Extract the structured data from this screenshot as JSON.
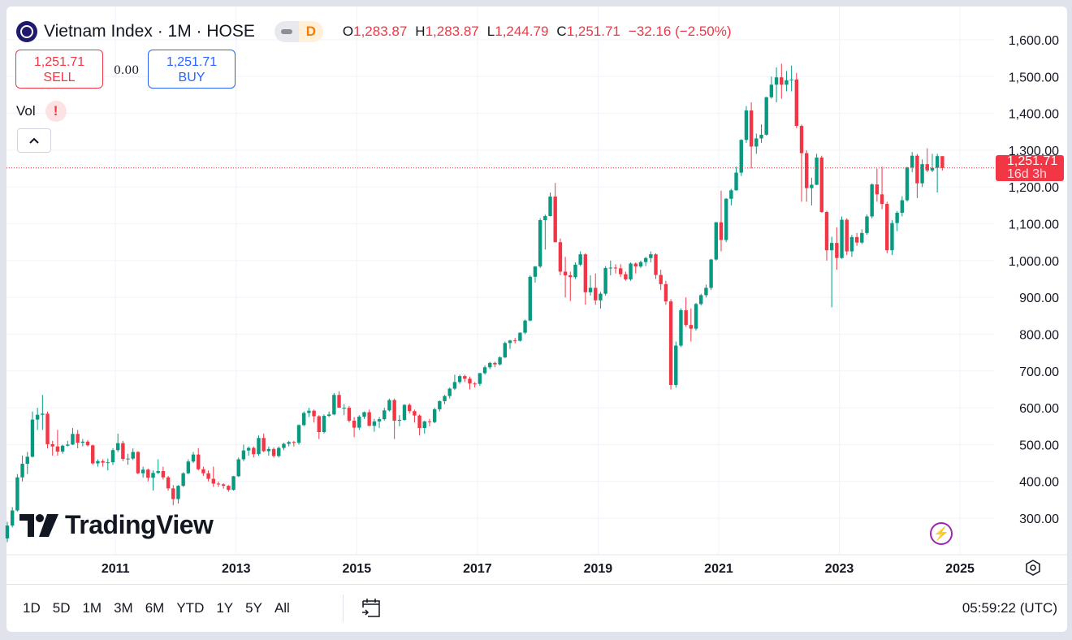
{
  "header": {
    "symbol_title": "Vietnam Index · 1M · HOSE",
    "data_status": "D",
    "ohlc": [
      {
        "key": "O",
        "value": "1,283.87"
      },
      {
        "key": "H",
        "value": "1,283.87"
      },
      {
        "key": "L",
        "value": "1,244.79"
      },
      {
        "key": "C",
        "value": "1,251.71"
      }
    ],
    "change": "−32.16 (−2.50%)"
  },
  "trade": {
    "sell_price": "1,251.71",
    "sell_label": "SELL",
    "spread": "0.00",
    "buy_price": "1,251.71",
    "buy_label": "BUY"
  },
  "indicator": {
    "name": "Vol",
    "warning": "!"
  },
  "collapse_icon": "chevron-up-icon",
  "logo_text": "TradingView",
  "price_tag": {
    "price": "1,251.71",
    "countdown": "16d 3h"
  },
  "toolbar": {
    "ranges": [
      "1D",
      "5D",
      "1M",
      "3M",
      "6M",
      "YTD",
      "1Y",
      "5Y",
      "All"
    ],
    "clock": "05:59:22 (UTC)"
  },
  "colors": {
    "up": "#089981",
    "down": "#f23645",
    "grid": "#f0f3fa",
    "last_price": "#f23645"
  },
  "chart_data": {
    "type": "candlestick",
    "interval": "1M",
    "y_tick_labels": [
      "1,600.00",
      "1,500.00",
      "1,400.00",
      "1,300.00",
      "1,200.00",
      "1,100.00",
      "1,000.00",
      "900.00",
      "800.00",
      "700.00",
      "600.00",
      "500.00",
      "400.00",
      "300.00"
    ],
    "y_ticks": [
      1600,
      1500,
      1400,
      1300,
      1200,
      1100,
      1000,
      900,
      800,
      700,
      600,
      500,
      400,
      300
    ],
    "x_tick_labels": [
      "2011",
      "2013",
      "2015",
      "2017",
      "2019",
      "2021",
      "2023",
      "2025"
    ],
    "grid": true,
    "last_price": 1251.71,
    "columns": [
      "date",
      "open",
      "high",
      "low",
      "close"
    ],
    "candles": [
      [
        "2009-03",
        245,
        290,
        235,
        280
      ],
      [
        "2009-04",
        280,
        330,
        275,
        321
      ],
      [
        "2009-05",
        321,
        420,
        318,
        411
      ],
      [
        "2009-06",
        411,
        470,
        400,
        448
      ],
      [
        "2009-07",
        448,
        480,
        420,
        467
      ],
      [
        "2009-08",
        467,
        590,
        465,
        568
      ],
      [
        "2009-09",
        568,
        600,
        540,
        581
      ],
      [
        "2009-10",
        581,
        635,
        540,
        584
      ],
      [
        "2009-11",
        584,
        590,
        490,
        501
      ],
      [
        "2009-12",
        501,
        510,
        470,
        495
      ],
      [
        "2010-01",
        495,
        540,
        470,
        481
      ],
      [
        "2010-02",
        481,
        500,
        475,
        497
      ],
      [
        "2010-03",
        497,
        510,
        495,
        500
      ],
      [
        "2010-04",
        500,
        545,
        499,
        529
      ],
      [
        "2010-05",
        529,
        540,
        490,
        505
      ],
      [
        "2010-06",
        505,
        515,
        495,
        508
      ],
      [
        "2010-07",
        508,
        512,
        495,
        498
      ],
      [
        "2010-08",
        498,
        500,
        445,
        449
      ],
      [
        "2010-09",
        449,
        460,
        440,
        455
      ],
      [
        "2010-10",
        455,
        460,
        440,
        451
      ],
      [
        "2010-11",
        451,
        462,
        430,
        452
      ],
      [
        "2010-12",
        452,
        490,
        445,
        485
      ],
      [
        "2011-01",
        485,
        530,
        480,
        504
      ],
      [
        "2011-02",
        504,
        510,
        455,
        461
      ],
      [
        "2011-03",
        461,
        475,
        445,
        462
      ],
      [
        "2011-04",
        462,
        490,
        458,
        480
      ],
      [
        "2011-05",
        480,
        482,
        420,
        422
      ],
      [
        "2011-06",
        422,
        440,
        410,
        432
      ],
      [
        "2011-07",
        432,
        435,
        400,
        410
      ],
      [
        "2011-08",
        410,
        430,
        375,
        423
      ],
      [
        "2011-09",
        423,
        460,
        420,
        428
      ],
      [
        "2011-10",
        428,
        440,
        405,
        411
      ],
      [
        "2011-11",
        411,
        415,
        375,
        381
      ],
      [
        "2011-12",
        381,
        390,
        335,
        352
      ],
      [
        "2012-01",
        352,
        390,
        340,
        388
      ],
      [
        "2012-02",
        388,
        425,
        385,
        422
      ],
      [
        "2012-03",
        422,
        460,
        420,
        454
      ],
      [
        "2012-04",
        454,
        480,
        450,
        473
      ],
      [
        "2012-05",
        473,
        490,
        430,
        433
      ],
      [
        "2012-06",
        433,
        440,
        415,
        422
      ],
      [
        "2012-07",
        422,
        430,
        400,
        407
      ],
      [
        "2012-08",
        407,
        440,
        385,
        394
      ],
      [
        "2012-09",
        394,
        400,
        385,
        392
      ],
      [
        "2012-10",
        392,
        395,
        380,
        388
      ],
      [
        "2012-11",
        388,
        390,
        372,
        377
      ],
      [
        "2012-12",
        377,
        415,
        375,
        414
      ],
      [
        "2013-01",
        414,
        465,
        412,
        460
      ],
      [
        "2013-02",
        460,
        500,
        455,
        484
      ],
      [
        "2013-03",
        484,
        495,
        470,
        491
      ],
      [
        "2013-04",
        491,
        495,
        465,
        474
      ],
      [
        "2013-05",
        474,
        525,
        470,
        518
      ],
      [
        "2013-06",
        518,
        530,
        480,
        482
      ],
      [
        "2013-07",
        482,
        495,
        470,
        488
      ],
      [
        "2013-08",
        488,
        492,
        465,
        469
      ],
      [
        "2013-09",
        469,
        495,
        465,
        491
      ],
      [
        "2013-10",
        491,
        505,
        485,
        502
      ],
      [
        "2013-11",
        502,
        510,
        495,
        507
      ],
      [
        "2013-12",
        507,
        510,
        495,
        505
      ],
      [
        "2014-01",
        505,
        555,
        500,
        553
      ],
      [
        "2014-02",
        553,
        590,
        550,
        586
      ],
      [
        "2014-03",
        586,
        600,
        575,
        592
      ],
      [
        "2014-04",
        592,
        595,
        560,
        577
      ],
      [
        "2014-05",
        577,
        580,
        515,
        534
      ],
      [
        "2014-06",
        534,
        582,
        530,
        578
      ],
      [
        "2014-07",
        578,
        590,
        575,
        582
      ],
      [
        "2014-08",
        582,
        640,
        580,
        635
      ],
      [
        "2014-09",
        635,
        645,
        600,
        600
      ],
      [
        "2014-10",
        600,
        610,
        580,
        600
      ],
      [
        "2014-11",
        600,
        605,
        560,
        565
      ],
      [
        "2014-12",
        565,
        575,
        520,
        546
      ],
      [
        "2015-01",
        546,
        580,
        540,
        576
      ],
      [
        "2015-02",
        576,
        590,
        570,
        588
      ],
      [
        "2015-03",
        588,
        595,
        550,
        551
      ],
      [
        "2015-04",
        551,
        570,
        535,
        563
      ],
      [
        "2015-05",
        563,
        575,
        545,
        569
      ],
      [
        "2015-06",
        569,
        600,
        565,
        593
      ],
      [
        "2015-07",
        593,
        625,
        590,
        621
      ],
      [
        "2015-08",
        621,
        625,
        515,
        565
      ],
      [
        "2015-09",
        565,
        580,
        550,
        567
      ],
      [
        "2015-10",
        567,
        610,
        565,
        608
      ],
      [
        "2015-11",
        608,
        612,
        585,
        591
      ],
      [
        "2015-12",
        591,
        595,
        560,
        579
      ],
      [
        "2016-01",
        579,
        582,
        525,
        545
      ],
      [
        "2016-02",
        545,
        565,
        530,
        563
      ],
      [
        "2016-03",
        563,
        570,
        550,
        561
      ],
      [
        "2016-04",
        561,
        600,
        558,
        596
      ],
      [
        "2016-05",
        596,
        620,
        590,
        618
      ],
      [
        "2016-06",
        618,
        635,
        610,
        632
      ],
      [
        "2016-07",
        632,
        655,
        625,
        652
      ],
      [
        "2016-08",
        652,
        690,
        648,
        670
      ],
      [
        "2016-09",
        670,
        690,
        665,
        686
      ],
      [
        "2016-10",
        686,
        690,
        670,
        679
      ],
      [
        "2016-11",
        679,
        685,
        650,
        666
      ],
      [
        "2016-12",
        666,
        670,
        655,
        665
      ],
      [
        "2017-01",
        665,
        695,
        660,
        694
      ],
      [
        "2017-02",
        694,
        715,
        690,
        710
      ],
      [
        "2017-03",
        710,
        725,
        705,
        722
      ],
      [
        "2017-04",
        722,
        725,
        710,
        718
      ],
      [
        "2017-05",
        718,
        740,
        715,
        737
      ],
      [
        "2017-06",
        737,
        780,
        735,
        776
      ],
      [
        "2017-07",
        776,
        785,
        760,
        783
      ],
      [
        "2017-08",
        783,
        790,
        775,
        782
      ],
      [
        "2017-09",
        782,
        805,
        780,
        804
      ],
      [
        "2017-10",
        804,
        840,
        800,
        837
      ],
      [
        "2017-11",
        837,
        960,
        835,
        956
      ],
      [
        "2017-12",
        956,
        985,
        940,
        984
      ],
      [
        "2018-01",
        984,
        1115,
        980,
        1110
      ],
      [
        "2018-02",
        1110,
        1125,
        1030,
        1121
      ],
      [
        "2018-03",
        1121,
        1185,
        1120,
        1174
      ],
      [
        "2018-04",
        1174,
        1211,
        1050,
        1050
      ],
      [
        "2018-05",
        1050,
        1060,
        960,
        970
      ],
      [
        "2018-06",
        970,
        1010,
        900,
        960
      ],
      [
        "2018-07",
        960,
        970,
        890,
        955
      ],
      [
        "2018-08",
        955,
        995,
        950,
        989
      ],
      [
        "2018-09",
        989,
        1025,
        985,
        1017
      ],
      [
        "2018-10",
        1017,
        1020,
        880,
        914
      ],
      [
        "2018-11",
        914,
        960,
        905,
        926
      ],
      [
        "2018-12",
        926,
        965,
        880,
        892
      ],
      [
        "2019-01",
        892,
        915,
        870,
        910
      ],
      [
        "2019-02",
        910,
        985,
        905,
        980
      ],
      [
        "2019-03",
        980,
        1000,
        960,
        981
      ],
      [
        "2019-04",
        981,
        990,
        965,
        979
      ],
      [
        "2019-05",
        979,
        990,
        955,
        963
      ],
      [
        "2019-06",
        963,
        970,
        945,
        949
      ],
      [
        "2019-07",
        949,
        995,
        945,
        992
      ],
      [
        "2019-08",
        992,
        995,
        965,
        984
      ],
      [
        "2019-09",
        984,
        1000,
        980,
        996
      ],
      [
        "2019-10",
        996,
        1010,
        985,
        1007
      ],
      [
        "2019-11",
        1007,
        1025,
        995,
        1017
      ],
      [
        "2019-12",
        1017,
        1020,
        950,
        961
      ],
      [
        "2020-01",
        961,
        975,
        920,
        936
      ],
      [
        "2020-02",
        936,
        945,
        880,
        889
      ],
      [
        "2020-03",
        889,
        895,
        650,
        662
      ],
      [
        "2020-04",
        662,
        780,
        655,
        769
      ],
      [
        "2020-05",
        769,
        870,
        765,
        865
      ],
      [
        "2020-06",
        865,
        900,
        820,
        825
      ],
      [
        "2020-07",
        825,
        870,
        780,
        815
      ],
      [
        "2020-08",
        815,
        885,
        810,
        882
      ],
      [
        "2020-09",
        882,
        910,
        878,
        906
      ],
      [
        "2020-10",
        906,
        935,
        900,
        926
      ],
      [
        "2020-11",
        926,
        1005,
        920,
        1003
      ],
      [
        "2020-12",
        1003,
        1105,
        1000,
        1104
      ],
      [
        "2021-01",
        1104,
        1190,
        1025,
        1056
      ],
      [
        "2021-02",
        1056,
        1170,
        1050,
        1168
      ],
      [
        "2021-03",
        1168,
        1195,
        1150,
        1191
      ],
      [
        "2021-04",
        1191,
        1255,
        1190,
        1239
      ],
      [
        "2021-05",
        1239,
        1330,
        1230,
        1328
      ],
      [
        "2021-06",
        1328,
        1420,
        1320,
        1408
      ],
      [
        "2021-07",
        1408,
        1430,
        1250,
        1310
      ],
      [
        "2021-08",
        1310,
        1345,
        1290,
        1332
      ],
      [
        "2021-09",
        1332,
        1370,
        1320,
        1342
      ],
      [
        "2021-10",
        1342,
        1445,
        1340,
        1444
      ],
      [
        "2021-11",
        1444,
        1500,
        1440,
        1478
      ],
      [
        "2021-12",
        1478,
        1525,
        1430,
        1498
      ],
      [
        "2022-01",
        1498,
        1535,
        1440,
        1478
      ],
      [
        "2022-02",
        1478,
        1515,
        1460,
        1490
      ],
      [
        "2022-03",
        1490,
        1530,
        1460,
        1492
      ],
      [
        "2022-04",
        1492,
        1510,
        1360,
        1366
      ],
      [
        "2022-05",
        1366,
        1370,
        1160,
        1292
      ],
      [
        "2022-06",
        1292,
        1300,
        1160,
        1197
      ],
      [
        "2022-07",
        1197,
        1225,
        1150,
        1206
      ],
      [
        "2022-08",
        1206,
        1290,
        1205,
        1280
      ],
      [
        "2022-09",
        1280,
        1285,
        1130,
        1132
      ],
      [
        "2022-10",
        1132,
        1135,
        1000,
        1028
      ],
      [
        "2022-11",
        1028,
        1065,
        873,
        1048
      ],
      [
        "2022-12",
        1048,
        1090,
        975,
        1007
      ],
      [
        "2023-01",
        1007,
        1120,
        1005,
        1111
      ],
      [
        "2023-02",
        1111,
        1115,
        1015,
        1025
      ],
      [
        "2023-03",
        1025,
        1070,
        1010,
        1064
      ],
      [
        "2023-04",
        1064,
        1075,
        1040,
        1049
      ],
      [
        "2023-05",
        1049,
        1085,
        1045,
        1075
      ],
      [
        "2023-06",
        1075,
        1125,
        1070,
        1120
      ],
      [
        "2023-07",
        1120,
        1210,
        1115,
        1207
      ],
      [
        "2023-08",
        1207,
        1250,
        1160,
        1180
      ],
      [
        "2023-09",
        1180,
        1255,
        1140,
        1154
      ],
      [
        "2023-10",
        1154,
        1160,
        1020,
        1028
      ],
      [
        "2023-11",
        1028,
        1110,
        1015,
        1102
      ],
      [
        "2023-12",
        1102,
        1135,
        1080,
        1130
      ],
      [
        "2024-01",
        1130,
        1175,
        1120,
        1164
      ],
      [
        "2024-02",
        1164,
        1255,
        1160,
        1253
      ],
      [
        "2024-03",
        1253,
        1295,
        1240,
        1285
      ],
      [
        "2024-04",
        1285,
        1290,
        1170,
        1210
      ],
      [
        "2024-05",
        1210,
        1275,
        1200,
        1262
      ],
      [
        "2024-06",
        1262,
        1305,
        1240,
        1245
      ],
      [
        "2024-07",
        1245,
        1290,
        1240,
        1252
      ],
      [
        "2024-08",
        1252,
        1290,
        1185,
        1283.87
      ],
      [
        "2024-09",
        1283.87,
        1283.87,
        1244.79,
        1251.71
      ]
    ]
  }
}
